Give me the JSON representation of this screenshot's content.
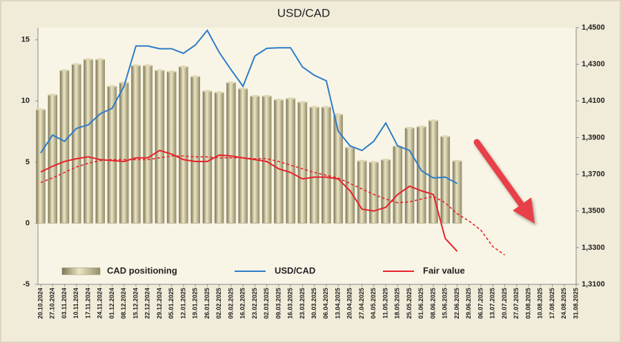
{
  "chart_data": {
    "type": "bar",
    "title": "USD/CAD",
    "categories": [
      "20.10.2024",
      "27.10.2024",
      "03.11.2024",
      "10.11.2024",
      "17.11.2024",
      "24.11.2024",
      "01.12.2024",
      "08.12.2024",
      "15.12.2024",
      "22.12.2024",
      "29.12.2024",
      "05.01.2025",
      "12.01.2025",
      "19.01.2025",
      "26.01.2025",
      "02.02.2025",
      "09.02.2025",
      "16.02.2025",
      "23.02.2025",
      "02.03.2025",
      "09.03.2025",
      "16.03.2025",
      "23.03.2025",
      "30.03.2025",
      "06.04.2025",
      "13.04.2025",
      "20.04.2025",
      "27.04.2025",
      "04.05.2025",
      "11.05.2025",
      "18.05.2025",
      "25.05.2025",
      "01.06.2025",
      "08.06.2025",
      "15.06.2025",
      "22.06.2025",
      "29.06.2025",
      "06.07.2025",
      "13.07.2025",
      "20.07.2025",
      "27.07.2025",
      "03.08.2025",
      "10.08.2025",
      "17.08.2025",
      "24.08.2025",
      "31.08.2025"
    ],
    "ylim": [
      -5,
      16
    ],
    "yticks": [
      -5,
      0,
      5,
      10,
      15
    ],
    "y2lim": [
      1.31,
      1.45
    ],
    "y2ticks": [
      {
        "value": 1.31,
        "label": "1,3100"
      },
      {
        "value": 1.33,
        "label": "1,3300"
      },
      {
        "value": 1.35,
        "label": "1,3500"
      },
      {
        "value": 1.37,
        "label": "1,3700"
      },
      {
        "value": 1.39,
        "label": "1,3900"
      },
      {
        "value": 1.41,
        "label": "1,4100"
      },
      {
        "value": 1.43,
        "label": "1,4300"
      },
      {
        "value": 1.45,
        "label": "1,4500"
      }
    ],
    "series": [
      {
        "name": "CAD positioning",
        "type": "bar",
        "color": "#b5ae86",
        "values": [
          9.3,
          10.5,
          12.5,
          13.0,
          13.4,
          13.4,
          11.2,
          11.5,
          12.9,
          12.9,
          12.5,
          12.4,
          12.8,
          12.0,
          10.8,
          10.7,
          11.5,
          11.0,
          10.4,
          10.4,
          10.1,
          10.2,
          9.9,
          9.5,
          9.5,
          8.9,
          6.2,
          5.1,
          5.0,
          5.2,
          6.3,
          7.8,
          7.9,
          8.4,
          7.1,
          5.1,
          null,
          null,
          null,
          null,
          null,
          null,
          null,
          null,
          null,
          null
        ]
      },
      {
        "name": "USD/CAD",
        "type": "line",
        "axis": "y2",
        "color": "#2b7bc8",
        "values": [
          1.3816,
          1.3914,
          1.388,
          1.395,
          1.397,
          1.403,
          1.406,
          1.418,
          1.44,
          1.44,
          1.4385,
          1.4385,
          1.436,
          1.4405,
          1.4485,
          1.4365,
          1.427,
          1.418,
          1.4345,
          1.4387,
          1.439,
          1.439,
          1.4285,
          1.424,
          1.421,
          1.3935,
          1.3855,
          1.383,
          1.388,
          1.398,
          1.3855,
          1.383,
          1.372,
          1.368,
          1.3685,
          1.365,
          null,
          null,
          null,
          null,
          null,
          null,
          null,
          null,
          null,
          null
        ]
      },
      {
        "name": "Fair value",
        "type": "line",
        "axis": "y2",
        "color": "#e8202a",
        "values": [
          1.3713,
          1.3744,
          1.377,
          1.3785,
          1.3795,
          1.378,
          1.3775,
          1.377,
          1.379,
          1.379,
          1.383,
          1.381,
          1.378,
          1.377,
          1.377,
          1.3805,
          1.38,
          1.379,
          1.378,
          1.377,
          1.373,
          1.371,
          1.3675,
          1.3685,
          1.3685,
          1.3675,
          1.361,
          1.351,
          1.35,
          1.352,
          1.359,
          1.3635,
          1.361,
          1.359,
          1.335,
          1.328,
          null,
          null,
          null,
          null,
          null,
          null,
          null,
          null,
          null,
          null
        ]
      },
      {
        "type": "line",
        "axis": "y2",
        "color": "#e8202a",
        "dash": true,
        "values": [
          1.3655,
          1.368,
          1.371,
          1.374,
          1.376,
          1.3775,
          1.378,
          1.378,
          1.378,
          1.378,
          1.379,
          1.38,
          1.38,
          1.3795,
          1.3795,
          1.379,
          1.379,
          1.379,
          1.3785,
          1.3785,
          1.377,
          1.375,
          1.373,
          1.371,
          1.3695,
          1.368,
          1.365,
          1.362,
          1.359,
          1.3565,
          1.3545,
          1.355,
          1.3565,
          1.358,
          1.3545,
          1.3485,
          1.3445,
          1.3395,
          1.3305,
          1.326,
          null,
          null,
          null,
          null,
          null,
          null
        ]
      }
    ]
  }
}
